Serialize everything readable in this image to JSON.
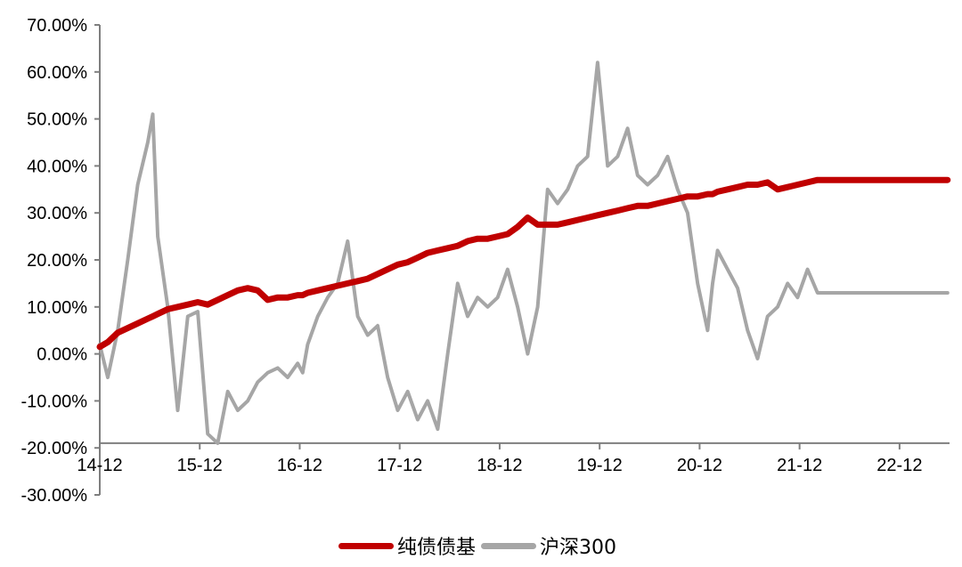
{
  "chart_data": {
    "type": "line",
    "y_axis": {
      "ylim": [
        -30,
        70
      ],
      "tick_values": [
        70,
        60,
        50,
        40,
        30,
        20,
        10,
        0,
        -10,
        -20,
        -30
      ],
      "tick_labels": [
        "70.00%",
        "60.00%",
        "50.00%",
        "40.00%",
        "30.00%",
        "20.00%",
        "10.00%",
        "0.00%",
        "-10.00%",
        "-20.00%",
        "-30.00%"
      ]
    },
    "x_axis": {
      "categories": [
        "14-12",
        "15-12",
        "16-12",
        "17-12",
        "18-12",
        "19-12",
        "20-12",
        "21-12",
        "22-12"
      ],
      "crosses_y_at": -19
    },
    "x": [
      2014.92,
      2015.0,
      2015.1,
      2015.2,
      2015.3,
      2015.4,
      2015.45,
      2015.5,
      2015.6,
      2015.7,
      2015.8,
      2015.9,
      2016.0,
      2016.1,
      2016.2,
      2016.3,
      2016.4,
      2016.5,
      2016.6,
      2016.7,
      2016.8,
      2016.9,
      2016.95,
      2017.0,
      2017.1,
      2017.2,
      2017.3,
      2017.4,
      2017.5,
      2017.6,
      2017.7,
      2017.8,
      2017.9,
      2018.0,
      2018.1,
      2018.2,
      2018.3,
      2018.4,
      2018.5,
      2018.6,
      2018.7,
      2018.8,
      2018.9,
      2019.0,
      2019.1,
      2019.2,
      2019.3,
      2019.4,
      2019.5,
      2019.6,
      2019.7,
      2019.8,
      2019.9,
      2020.0,
      2020.1,
      2020.2,
      2020.3,
      2020.4,
      2020.5,
      2020.6,
      2020.7,
      2020.8,
      2020.9,
      2021.0,
      2021.05,
      2021.1,
      2021.2,
      2021.3,
      2021.4,
      2021.5,
      2021.6,
      2021.7,
      2021.8,
      2021.9,
      2022.0,
      2022.1,
      2022.2,
      2022.3,
      2022.4,
      2022.5,
      2022.6,
      2022.7,
      2022.8,
      2022.9,
      2023.0,
      2023.1,
      2023.2,
      2023.3,
      2023.4
    ],
    "series": [
      {
        "name": "纯债债基",
        "color": "#c00000",
        "values": [
          1.5,
          2.5,
          4.5,
          5.5,
          6.5,
          7.5,
          8.0,
          8.5,
          9.5,
          10.0,
          10.5,
          11.0,
          10.5,
          11.5,
          12.5,
          13.5,
          14.0,
          13.5,
          11.5,
          12.0,
          12.0,
          12.5,
          12.5,
          13.0,
          13.5,
          14.0,
          14.5,
          15.0,
          15.5,
          16.0,
          17.0,
          18.0,
          19.0,
          19.5,
          20.5,
          21.5,
          22.0,
          22.5,
          23.0,
          24.0,
          24.5,
          24.5,
          25.0,
          25.5,
          27.0,
          29.0,
          27.5,
          27.5,
          27.5,
          28.0,
          28.5,
          29.0,
          29.5,
          30.0,
          30.5,
          31.0,
          31.5,
          31.5,
          32.0,
          32.5,
          33.0,
          33.5,
          33.5,
          34.0,
          34.0,
          34.5,
          35.0,
          35.5,
          36.0,
          36.0,
          36.5,
          35.0,
          35.5,
          36.0,
          36.5,
          37.0,
          37.0,
          37.0,
          37.0,
          37.0,
          37.0,
          37.0,
          37.0,
          37.0,
          37.0,
          37.0,
          37.0,
          37.0,
          37.0
        ]
      },
      {
        "name": "沪深300",
        "color": "#a6a6a6",
        "values": [
          2.0,
          -5.0,
          5.0,
          20.0,
          36.0,
          45.0,
          51.0,
          25.0,
          10.0,
          -12.0,
          8.0,
          9.0,
          -17.0,
          -19.0,
          -8.0,
          -12.0,
          -10.0,
          -6.0,
          -4.0,
          -3.0,
          -5.0,
          -2.0,
          -4.0,
          2.0,
          8.0,
          12.0,
          15.0,
          24.0,
          8.0,
          4.0,
          6.0,
          -5.0,
          -12.0,
          -8.0,
          -14.0,
          -10.0,
          -16.0,
          0.0,
          15.0,
          8.0,
          12.0,
          10.0,
          12.0,
          18.0,
          10.0,
          0.0,
          10.0,
          35.0,
          32.0,
          35.0,
          40.0,
          42.0,
          62.0,
          40.0,
          42.0,
          48.0,
          38.0,
          36.0,
          38.0,
          42.0,
          35.0,
          30.0,
          15.0,
          5.0,
          15.0,
          22.0,
          18.0,
          14.0,
          5.0,
          -1.0,
          8.0,
          10.0,
          15.0,
          12.0,
          18.0,
          13.0,
          13.0,
          13.0,
          13.0,
          13.0,
          13.0,
          13.0,
          13.0,
          13.0,
          13.0,
          13.0,
          13.0,
          13.0,
          13.0
        ]
      }
    ],
    "legend": {
      "position": "bottom-center"
    }
  }
}
